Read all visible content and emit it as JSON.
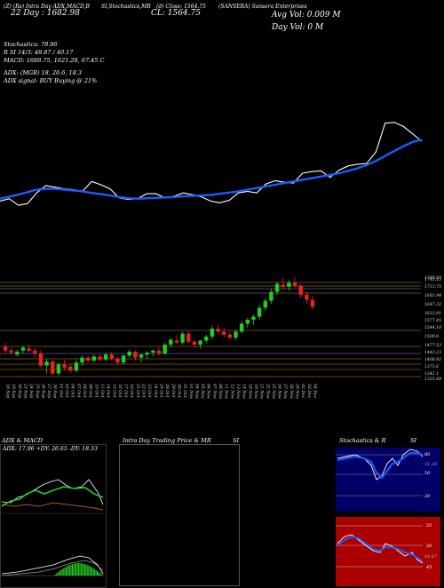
{
  "header": {
    "top_left": "(Z) (Rs) Intra Day ADX,MACD,B",
    "top_left_2": "22 Day : 1682.98",
    "top_mid": "SI,Stochastics,MR",
    "top_mid_2": "(d) Close: 1564.75",
    "cl_label": "CL: 1564.75",
    "company": "(SANSERA) Sansera Enterprises",
    "avg_vol": "Avg Vol: 0.009 M",
    "day_vol": "Day Vol: 0   M"
  },
  "indicators": {
    "stoch_line": "Stochastics: 78.96",
    "si_line": "R              SI 14/3: 48.87 / 40.17",
    "macd_line": "MACD: 1688.75, 1621.28, 67.45 C",
    "adx_line": "ADX:                              (MGB) 18, 26.6, 18.3",
    "adx_signal": "ADX  signal:                     BUY Buying @ 21%"
  },
  "chart_data": [
    {
      "type": "line",
      "series": [
        {
          "color": "#ffffff",
          "values": [
            1412,
            1418,
            1402,
            1406,
            1432,
            1450,
            1446,
            1442,
            1440,
            1436,
            1460,
            1452,
            1442,
            1420,
            1416,
            1418,
            1430,
            1430,
            1420,
            1424,
            1432,
            1428,
            1422,
            1412,
            1408,
            1414,
            1432,
            1436,
            1432,
            1454,
            1462,
            1458,
            1456,
            1480,
            1484,
            1486,
            1470,
            1488,
            1498,
            1502,
            1504,
            1532,
            1602,
            1604,
            1594,
            1576,
            1558
          ]
        },
        {
          "color": "#1c5cff",
          "values": [
            1418,
            1423,
            1428,
            1434,
            1440,
            1442,
            1442,
            1440,
            1438,
            1436,
            1432,
            1429,
            1426,
            1422,
            1419,
            1418,
            1419,
            1420,
            1421,
            1422,
            1424,
            1425,
            1426,
            1427,
            1430,
            1433,
            1436,
            1440,
            1444,
            1448,
            1452,
            1456,
            1460,
            1464,
            1468,
            1472,
            1476,
            1480,
            1486,
            1492,
            1500,
            1510,
            1522,
            1534,
            1546,
            1556,
            1562
          ]
        }
      ]
    },
    {
      "type": "candlestick",
      "x": [
        "18 Sep",
        "19 Sep",
        "20 Sep",
        "23 Sep",
        "24 Sep",
        "25 Sep",
        "26 Sep",
        "27 Sep",
        "30 Sep",
        "01 Oct",
        "03 Oct",
        "04 Oct",
        "07 Oct",
        "08 Oct",
        "09 Oct",
        "10 Oct",
        "11 Oct",
        "14 Oct",
        "15 Oct",
        "16 Oct",
        "17 Oct",
        "18 Oct",
        "21 Oct",
        "22 Oct",
        "23 Oct",
        "24 Oct",
        "25 Oct",
        "28 Oct",
        "29 Oct",
        "30 Oct",
        "31 Oct",
        "01 Nov",
        "04 Nov",
        "05 Nov",
        "06 Nov",
        "07 Nov",
        "08 Nov",
        "11 Nov",
        "12 Nov",
        "13 Nov",
        "14 Nov",
        "18 Nov",
        "19 Nov",
        "21 Nov",
        "22 Nov",
        "25 Nov",
        "26 Nov",
        "27 Nov",
        "28 Nov",
        "29 Nov",
        "02 Dec",
        "03 Dec",
        "04 Dec"
      ],
      "ohlc": [
        [
          1502,
          1510,
          1488,
          1494
        ],
        [
          1494,
          1500,
          1486,
          1490
        ],
        [
          1486,
          1496,
          1482,
          1492
        ],
        [
          1494,
          1504,
          1488,
          1500
        ],
        [
          1498,
          1506,
          1490,
          1494
        ],
        [
          1494,
          1500,
          1480,
          1488
        ],
        [
          1488,
          1494,
          1460,
          1464
        ],
        [
          1464,
          1478,
          1448,
          1472
        ],
        [
          1472,
          1476,
          1444,
          1448
        ],
        [
          1448,
          1470,
          1444,
          1466
        ],
        [
          1466,
          1476,
          1454,
          1460
        ],
        [
          1462,
          1468,
          1448,
          1454
        ],
        [
          1454,
          1476,
          1450,
          1470
        ],
        [
          1470,
          1484,
          1464,
          1480
        ],
        [
          1480,
          1484,
          1470,
          1474
        ],
        [
          1474,
          1486,
          1470,
          1482
        ],
        [
          1482,
          1486,
          1472,
          1476
        ],
        [
          1476,
          1490,
          1472,
          1486
        ],
        [
          1486,
          1492,
          1474,
          1478
        ],
        [
          1478,
          1482,
          1466,
          1470
        ],
        [
          1470,
          1486,
          1466,
          1484
        ],
        [
          1484,
          1496,
          1480,
          1492
        ],
        [
          1492,
          1494,
          1474,
          1480
        ],
        [
          1480,
          1488,
          1470,
          1486
        ],
        [
          1486,
          1492,
          1478,
          1490
        ],
        [
          1490,
          1496,
          1482,
          1494
        ],
        [
          1494,
          1500,
          1484,
          1488
        ],
        [
          1488,
          1510,
          1486,
          1506
        ],
        [
          1506,
          1520,
          1500,
          1516
        ],
        [
          1514,
          1526,
          1508,
          1510
        ],
        [
          1510,
          1532,
          1506,
          1528
        ],
        [
          1528,
          1534,
          1508,
          1512
        ],
        [
          1512,
          1516,
          1500,
          1506
        ],
        [
          1506,
          1516,
          1498,
          1514
        ],
        [
          1514,
          1526,
          1508,
          1522
        ],
        [
          1522,
          1544,
          1516,
          1538
        ],
        [
          1538,
          1546,
          1528,
          1532
        ],
        [
          1532,
          1540,
          1520,
          1526
        ],
        [
          1526,
          1532,
          1516,
          1520
        ],
        [
          1520,
          1536,
          1516,
          1532
        ],
        [
          1532,
          1554,
          1528,
          1548
        ],
        [
          1548,
          1560,
          1540,
          1556
        ],
        [
          1556,
          1566,
          1546,
          1562
        ],
        [
          1562,
          1586,
          1556,
          1580
        ],
        [
          1580,
          1600,
          1574,
          1594
        ],
        [
          1594,
          1618,
          1588,
          1612
        ],
        [
          1612,
          1632,
          1606,
          1628
        ],
        [
          1626,
          1640,
          1616,
          1622
        ],
        [
          1622,
          1636,
          1614,
          1630
        ],
        [
          1630,
          1642,
          1620,
          1624
        ],
        [
          1624,
          1628,
          1600,
          1606
        ],
        [
          1606,
          1612,
          1588,
          1596
        ],
        [
          1596,
          1604,
          1576,
          1582
        ]
      ],
      "price_labels": [
        "1749.55",
        "1745.15",
        "1713.75",
        "1681.94",
        "1647.32",
        "1612.91",
        "1577.45",
        "1544.18",
        "1509.6",
        "1477.53",
        "1443.23",
        "1408.92",
        "1373.6",
        "1342.1",
        "1325.88"
      ]
    }
  ],
  "panels": {
    "adx_title": "ADX  & MACD",
    "adx_values": "ADX: 17.96  +DY: 26.65  -DY: 18.33",
    "intra_title": "Intra Day Trading Price  & MR",
    "intra_si": "SI",
    "stoch_title": "Stochastics  & R",
    "stoch_si": "SI",
    "stoch_levels": [
      "80",
      "50",
      "20"
    ],
    "si_levels": [
      "55",
      "50",
      "45"
    ],
    "stoch_value": "51.26",
    "si_value": "48.87"
  }
}
